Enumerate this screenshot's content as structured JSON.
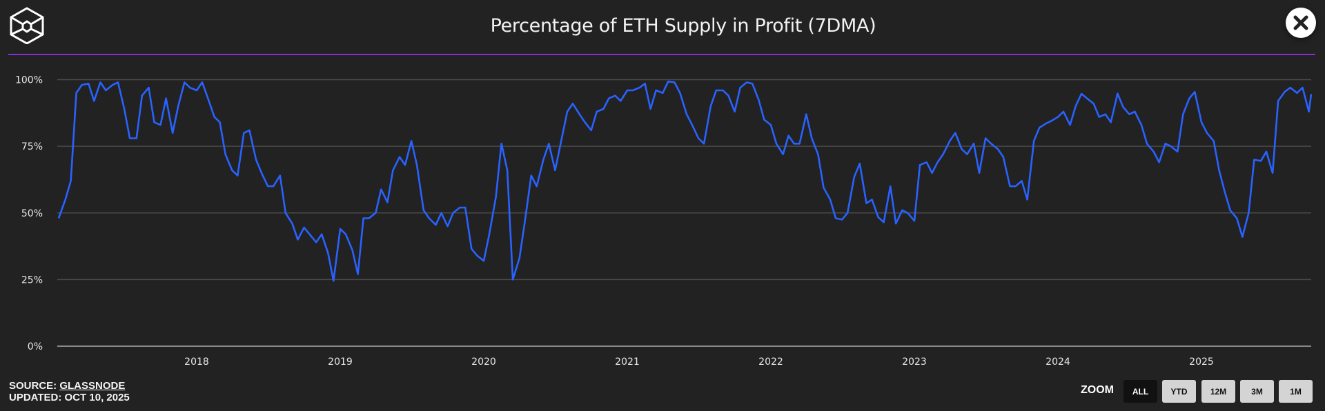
{
  "header": {
    "title": "Percentage of ETH Supply in Profit (7DMA)",
    "close_icon": "close-x-icon",
    "logo_icon": "hexagon-cube-logo"
  },
  "footer": {
    "source_prefix": "SOURCE: ",
    "source_link": "GLASSNODE",
    "updated": "UPDATED: OCT 10, 2025"
  },
  "zoom": {
    "label": "ZOOM",
    "buttons": [
      "ALL",
      "YTD",
      "12M",
      "3M",
      "1M"
    ],
    "active": "ALL"
  },
  "colors": {
    "background": "#222222",
    "line": "#2962ff",
    "rule": "#8a2be2",
    "grid": "#4a4a4a"
  },
  "chart_data": {
    "type": "line",
    "title": "Percentage of ETH Supply in Profit (7DMA)",
    "xlabel": "",
    "ylabel": "",
    "ylim": [
      0,
      100
    ],
    "yticks": [
      "0%",
      "25%",
      "50%",
      "75%",
      "100%"
    ],
    "xticks": [
      "2018",
      "2019",
      "2020",
      "2021",
      "2022",
      "2023",
      "2024",
      "2025"
    ],
    "grid": "horizontal",
    "series": [
      {
        "values": [
          [
            "2017-01-15",
            48
          ],
          [
            "2017-02-01",
            55
          ],
          [
            "2017-02-15",
            62
          ],
          [
            "2017-03-01",
            95
          ],
          [
            "2017-03-15",
            98
          ],
          [
            "2017-04-01",
            98.5
          ],
          [
            "2017-04-15",
            92
          ],
          [
            "2017-05-01",
            99
          ],
          [
            "2017-05-15",
            96
          ],
          [
            "2017-06-01",
            98
          ],
          [
            "2017-06-15",
            99
          ],
          [
            "2017-07-01",
            89
          ],
          [
            "2017-07-15",
            78
          ],
          [
            "2017-08-01",
            78
          ],
          [
            "2017-08-15",
            94
          ],
          [
            "2017-09-01",
            97
          ],
          [
            "2017-09-15",
            84
          ],
          [
            "2017-10-01",
            83
          ],
          [
            "2017-10-15",
            93
          ],
          [
            "2017-11-01",
            80
          ],
          [
            "2017-11-15",
            90
          ],
          [
            "2017-12-01",
            99
          ],
          [
            "2017-12-15",
            97
          ],
          [
            "2018-01-01",
            96
          ],
          [
            "2018-01-15",
            99
          ],
          [
            "2018-02-01",
            92
          ],
          [
            "2018-02-15",
            86
          ],
          [
            "2018-03-01",
            84
          ],
          [
            "2018-03-15",
            72
          ],
          [
            "2018-04-01",
            66
          ],
          [
            "2018-04-15",
            64
          ],
          [
            "2018-05-01",
            80
          ],
          [
            "2018-05-15",
            81
          ],
          [
            "2018-06-01",
            70
          ],
          [
            "2018-06-15",
            65
          ],
          [
            "2018-07-01",
            60
          ],
          [
            "2018-07-15",
            60
          ],
          [
            "2018-08-01",
            64
          ],
          [
            "2018-08-15",
            50
          ],
          [
            "2018-09-01",
            46
          ],
          [
            "2018-09-15",
            40
          ],
          [
            "2018-10-01",
            44.5
          ],
          [
            "2018-10-15",
            42
          ],
          [
            "2018-11-01",
            39
          ],
          [
            "2018-11-15",
            42
          ],
          [
            "2018-12-01",
            35
          ],
          [
            "2018-12-15",
            24.5
          ],
          [
            "2019-01-01",
            44
          ],
          [
            "2019-01-15",
            42
          ],
          [
            "2019-02-01",
            36
          ],
          [
            "2019-02-15",
            27
          ],
          [
            "2019-03-01",
            48
          ],
          [
            "2019-03-15",
            48
          ],
          [
            "2019-04-01",
            50
          ],
          [
            "2019-04-15",
            58.8
          ],
          [
            "2019-05-01",
            54
          ],
          [
            "2019-05-15",
            66
          ],
          [
            "2019-06-01",
            71
          ],
          [
            "2019-06-15",
            68
          ],
          [
            "2019-07-01",
            77
          ],
          [
            "2019-07-15",
            68
          ],
          [
            "2019-08-01",
            51
          ],
          [
            "2019-08-15",
            48
          ],
          [
            "2019-09-01",
            45.5
          ],
          [
            "2019-09-15",
            50
          ],
          [
            "2019-10-01",
            45
          ],
          [
            "2019-10-15",
            50
          ],
          [
            "2019-11-01",
            52
          ],
          [
            "2019-11-15",
            52
          ],
          [
            "2019-12-01",
            36.5
          ],
          [
            "2019-12-15",
            34
          ],
          [
            "2020-01-01",
            32
          ],
          [
            "2020-01-15",
            42
          ],
          [
            "2020-02-01",
            56
          ],
          [
            "2020-02-15",
            76
          ],
          [
            "2020-03-01",
            66
          ],
          [
            "2020-03-15",
            25
          ],
          [
            "2020-04-01",
            33
          ],
          [
            "2020-04-15",
            47
          ],
          [
            "2020-05-01",
            64
          ],
          [
            "2020-05-15",
            60
          ],
          [
            "2020-06-01",
            70
          ],
          [
            "2020-06-15",
            76
          ],
          [
            "2020-07-01",
            66
          ],
          [
            "2020-07-15",
            76
          ],
          [
            "2020-08-01",
            88
          ],
          [
            "2020-08-15",
            91
          ],
          [
            "2020-09-01",
            87
          ],
          [
            "2020-09-15",
            84
          ],
          [
            "2020-10-01",
            81
          ],
          [
            "2020-10-15",
            88
          ],
          [
            "2020-11-01",
            89
          ],
          [
            "2020-11-15",
            93
          ],
          [
            "2020-12-01",
            94
          ],
          [
            "2020-12-15",
            92
          ],
          [
            "2021-01-01",
            96
          ],
          [
            "2021-01-15",
            96
          ],
          [
            "2021-02-01",
            97
          ],
          [
            "2021-02-15",
            98.5
          ],
          [
            "2021-03-01",
            89
          ],
          [
            "2021-03-15",
            96
          ],
          [
            "2021-04-01",
            95
          ],
          [
            "2021-04-15",
            99.3
          ],
          [
            "2021-05-01",
            99
          ],
          [
            "2021-05-15",
            95
          ],
          [
            "2021-06-01",
            87
          ],
          [
            "2021-06-15",
            83
          ],
          [
            "2021-07-01",
            78
          ],
          [
            "2021-07-15",
            76
          ],
          [
            "2021-08-01",
            90
          ],
          [
            "2021-08-15",
            96
          ],
          [
            "2021-09-01",
            96
          ],
          [
            "2021-09-15",
            94
          ],
          [
            "2021-10-01",
            88
          ],
          [
            "2021-10-15",
            97
          ],
          [
            "2021-11-01",
            99
          ],
          [
            "2021-11-15",
            98.5
          ],
          [
            "2021-12-01",
            92.5
          ],
          [
            "2021-12-15",
            85
          ],
          [
            "2022-01-01",
            83
          ],
          [
            "2022-01-15",
            76
          ],
          [
            "2022-02-01",
            72
          ],
          [
            "2022-02-15",
            79
          ],
          [
            "2022-03-01",
            76
          ],
          [
            "2022-03-15",
            76
          ],
          [
            "2022-04-01",
            87
          ],
          [
            "2022-04-15",
            78
          ],
          [
            "2022-05-01",
            72
          ],
          [
            "2022-05-15",
            59.5
          ],
          [
            "2022-06-01",
            55
          ],
          [
            "2022-06-15",
            48
          ],
          [
            "2022-07-01",
            47.5
          ],
          [
            "2022-07-15",
            50
          ],
          [
            "2022-08-01",
            63.5
          ],
          [
            "2022-08-15",
            68.5
          ],
          [
            "2022-09-01",
            53.6
          ],
          [
            "2022-09-15",
            55
          ],
          [
            "2022-10-01",
            48.4
          ],
          [
            "2022-10-15",
            46.5
          ],
          [
            "2022-11-01",
            60
          ],
          [
            "2022-11-15",
            46
          ],
          [
            "2022-12-01",
            51
          ],
          [
            "2022-12-15",
            50
          ],
          [
            "2023-01-01",
            47
          ],
          [
            "2023-01-15",
            68
          ],
          [
            "2023-02-01",
            69
          ],
          [
            "2023-02-15",
            65
          ],
          [
            "2023-03-01",
            69
          ],
          [
            "2023-03-15",
            72
          ],
          [
            "2023-04-01",
            77
          ],
          [
            "2023-04-15",
            80
          ],
          [
            "2023-05-01",
            74
          ],
          [
            "2023-05-15",
            72
          ],
          [
            "2023-06-01",
            76
          ],
          [
            "2023-06-15",
            65
          ],
          [
            "2023-07-01",
            78
          ],
          [
            "2023-07-15",
            76
          ],
          [
            "2023-08-01",
            74
          ],
          [
            "2023-08-15",
            71
          ],
          [
            "2023-09-01",
            60
          ],
          [
            "2023-09-15",
            60
          ],
          [
            "2023-10-01",
            62
          ],
          [
            "2023-10-15",
            55
          ],
          [
            "2023-11-01",
            77
          ],
          [
            "2023-11-15",
            82
          ],
          [
            "2023-12-01",
            83.5
          ],
          [
            "2023-12-15",
            84.5
          ],
          [
            "2024-01-01",
            86
          ],
          [
            "2024-01-15",
            88
          ],
          [
            "2024-02-01",
            83
          ],
          [
            "2024-02-15",
            90
          ],
          [
            "2024-03-01",
            94.7
          ],
          [
            "2024-03-15",
            93
          ],
          [
            "2024-04-01",
            91
          ],
          [
            "2024-04-15",
            86
          ],
          [
            "2024-05-01",
            87
          ],
          [
            "2024-05-15",
            84
          ],
          [
            "2024-06-01",
            94.8
          ],
          [
            "2024-06-15",
            89.8
          ],
          [
            "2024-07-01",
            87
          ],
          [
            "2024-07-15",
            88
          ],
          [
            "2024-08-01",
            83
          ],
          [
            "2024-08-15",
            76
          ],
          [
            "2024-09-01",
            73
          ],
          [
            "2024-09-15",
            69
          ],
          [
            "2024-10-01",
            76
          ],
          [
            "2024-10-15",
            75
          ],
          [
            "2024-11-01",
            73
          ],
          [
            "2024-11-15",
            87
          ],
          [
            "2024-12-01",
            93
          ],
          [
            "2024-12-15",
            95.4
          ],
          [
            "2025-01-01",
            84
          ],
          [
            "2025-01-15",
            80
          ],
          [
            "2025-02-01",
            77
          ],
          [
            "2025-02-15",
            66
          ],
          [
            "2025-03-01",
            58
          ],
          [
            "2025-03-15",
            51
          ],
          [
            "2025-04-01",
            48
          ],
          [
            "2025-04-15",
            41
          ],
          [
            "2025-05-01",
            50
          ],
          [
            "2025-05-15",
            70
          ],
          [
            "2025-06-01",
            69.5
          ],
          [
            "2025-06-15",
            73
          ],
          [
            "2025-07-01",
            65
          ],
          [
            "2025-07-15",
            92
          ],
          [
            "2025-08-01",
            95.5
          ],
          [
            "2025-08-15",
            97
          ],
          [
            "2025-09-01",
            95
          ],
          [
            "2025-09-15",
            97
          ],
          [
            "2025-10-01",
            88
          ],
          [
            "2025-10-07",
            94.6
          ]
        ]
      }
    ]
  }
}
